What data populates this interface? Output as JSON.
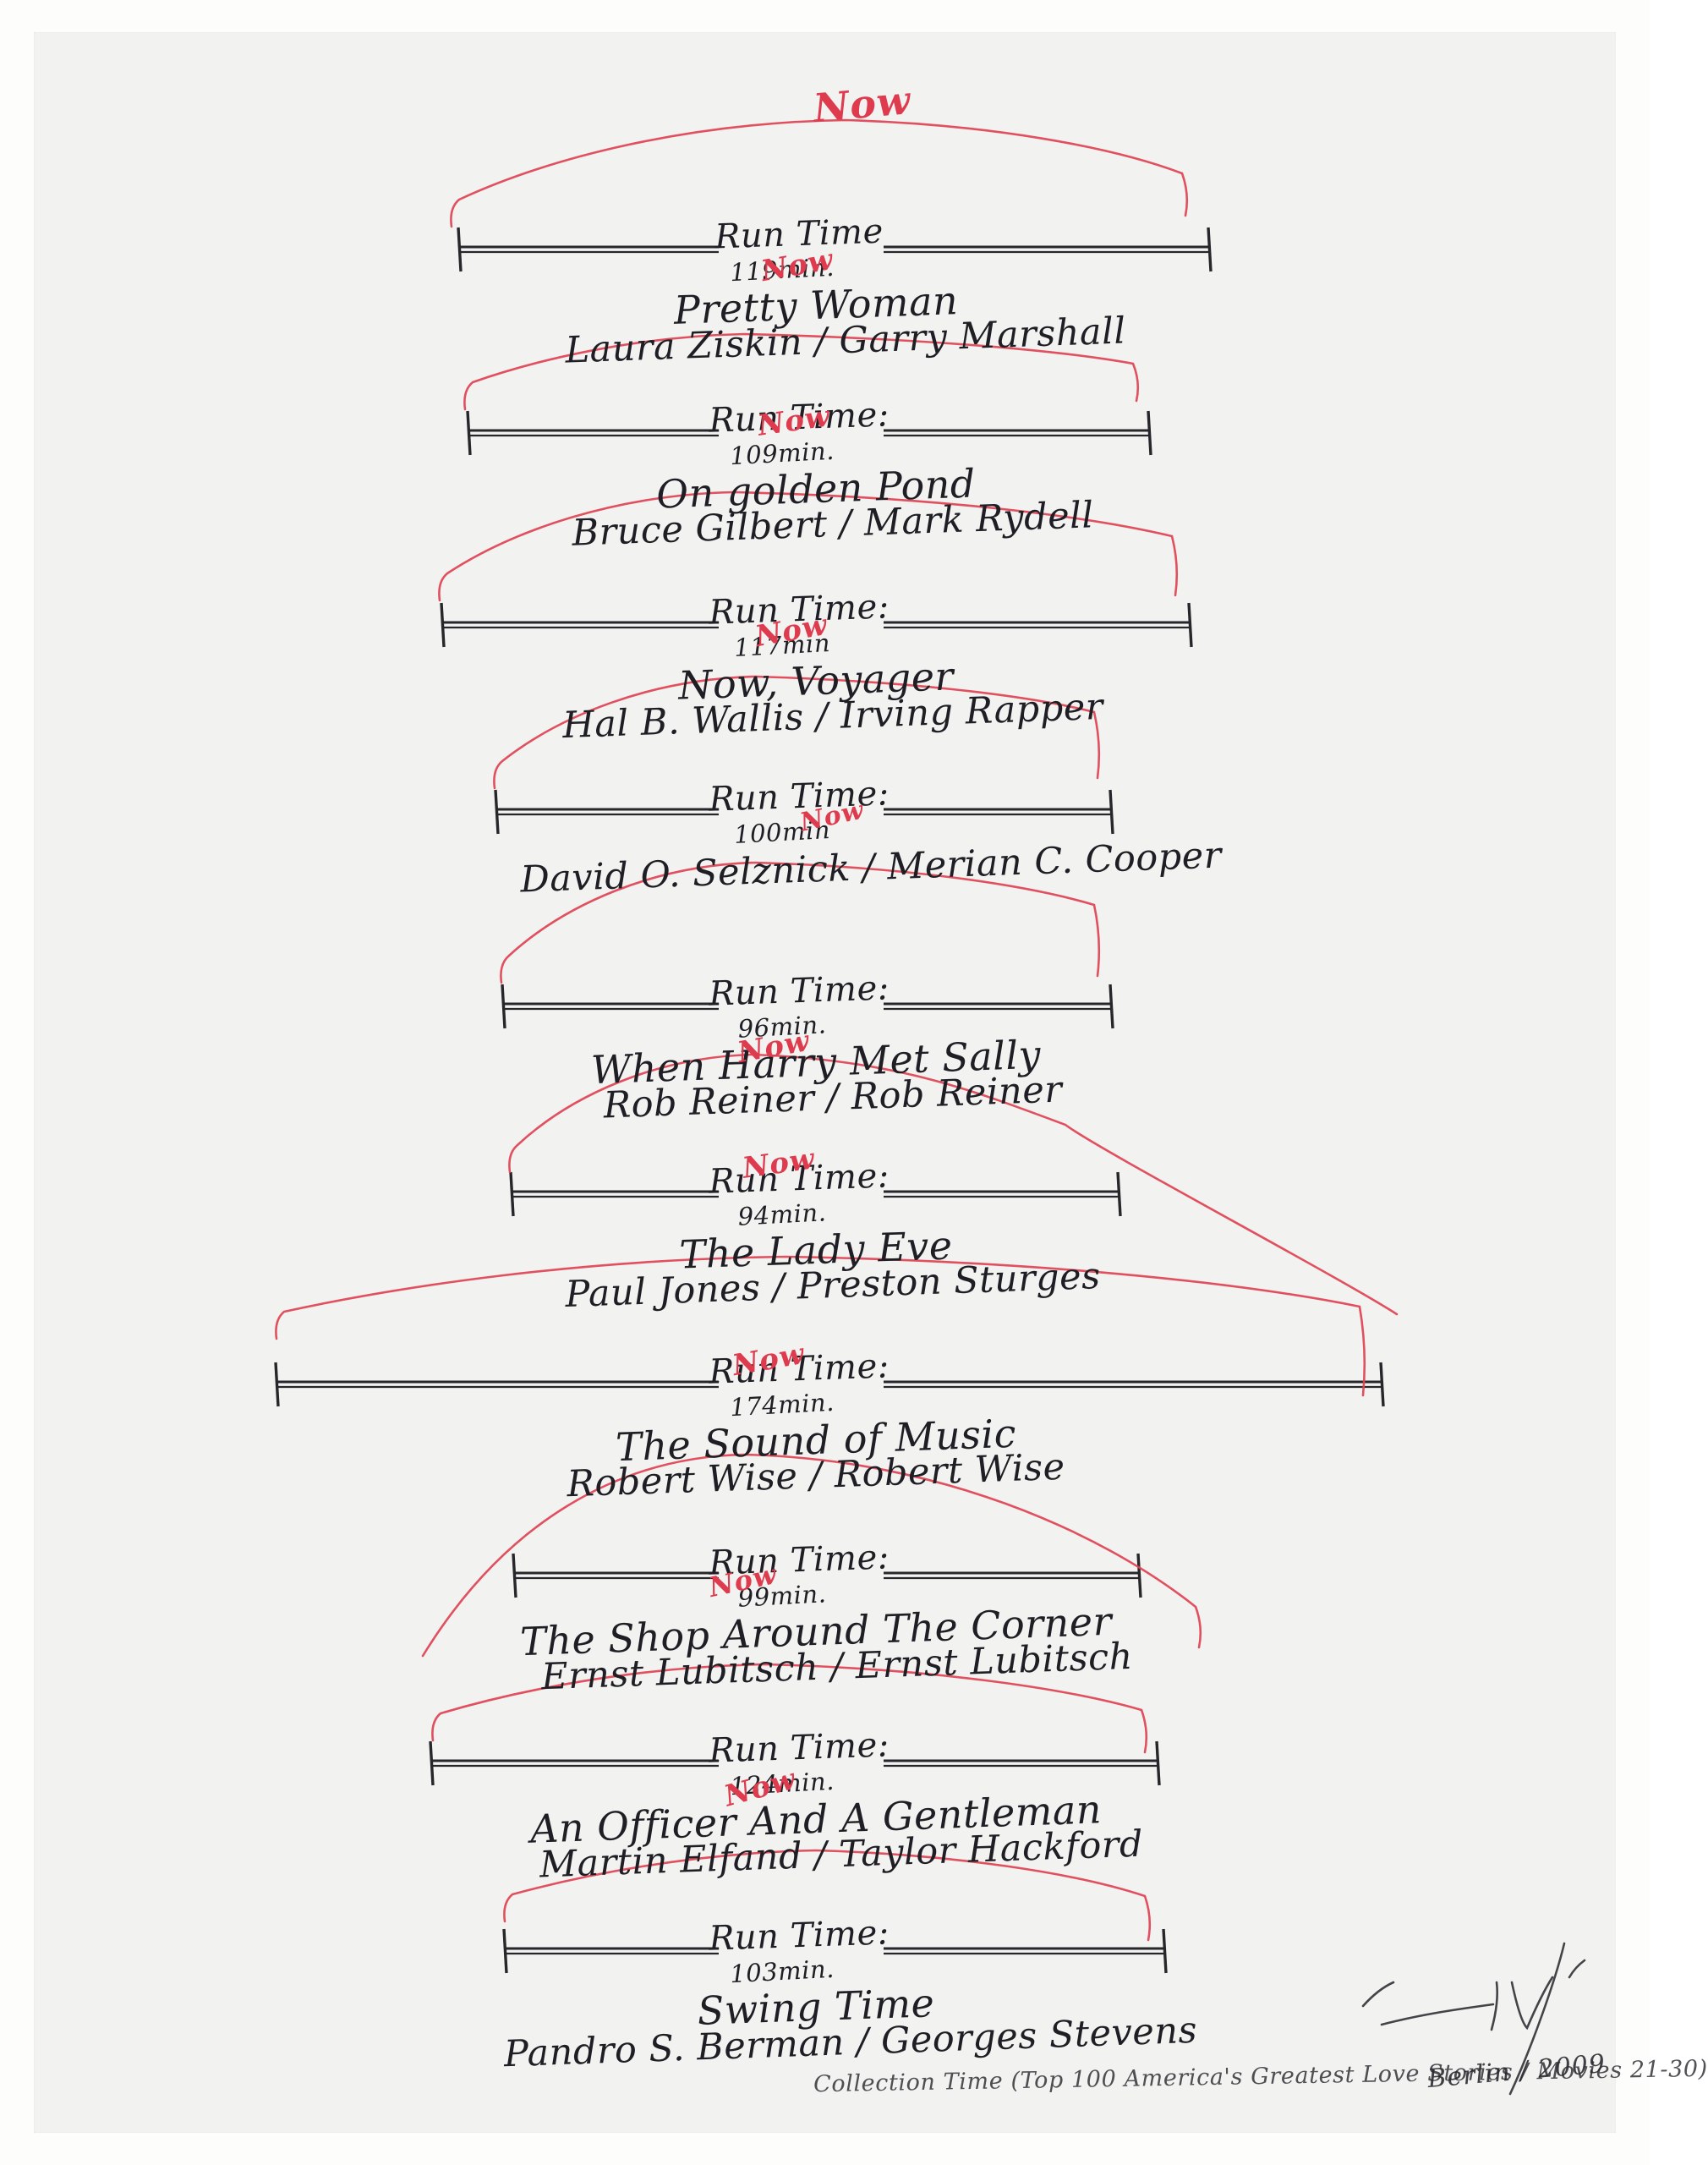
{
  "artwork": {
    "now_label": "Now",
    "caption": "Collection Time (Top 100 America's Greatest Love Stories / Movies 21-30)",
    "place_year": "Berlin / 2009",
    "colors": {
      "paper": "#f2f2f1",
      "ink": "#26262b",
      "red": "#e04252"
    },
    "entries": [
      {
        "run_time": "Run Time",
        "minutes": "119min.",
        "title": "Pretty Woman",
        "credits": "Laura Ziskin / Garry Marshall"
      },
      {
        "run_time": "Run Time:",
        "minutes": "109min.",
        "title": "On golden Pond",
        "credits": "Bruce Gilbert / Mark Rydell"
      },
      {
        "run_time": "Run Time:",
        "minutes": "117min",
        "title": "Now, Voyager",
        "credits": "Hal B. Wallis / Irving Rapper"
      },
      {
        "run_time": "Run Time:",
        "minutes": "100min",
        "title": "",
        "credits": "David O. Selznick / Merian C. Cooper"
      },
      {
        "run_time": "Run Time:",
        "minutes": "96min.",
        "title": "When Harry Met Sally",
        "credits": "Rob Reiner / Rob Reiner"
      },
      {
        "run_time": "Run Time:",
        "minutes": "94min.",
        "title": "The Lady Eve",
        "credits": "Paul Jones / Preston Sturges"
      },
      {
        "run_time": "Run Time:",
        "minutes": "174min.",
        "title": "The Sound of Music",
        "credits": "Robert Wise / Robert Wise"
      },
      {
        "run_time": "Run Time:",
        "minutes": "99min.",
        "title": "The Shop Around The Corner",
        "credits": "Ernst Lubitsch / Ernst Lubitsch"
      },
      {
        "run_time": "Run Time:",
        "minutes": "124min.",
        "title": "An Officer And A Gentleman",
        "credits": "Martin Elfand / Taylor Hackford"
      },
      {
        "run_time": "Run Time:",
        "minutes": "103min.",
        "title": "Swing Time",
        "credits": "Pandro S. Berman / Georges Stevens"
      }
    ]
  }
}
